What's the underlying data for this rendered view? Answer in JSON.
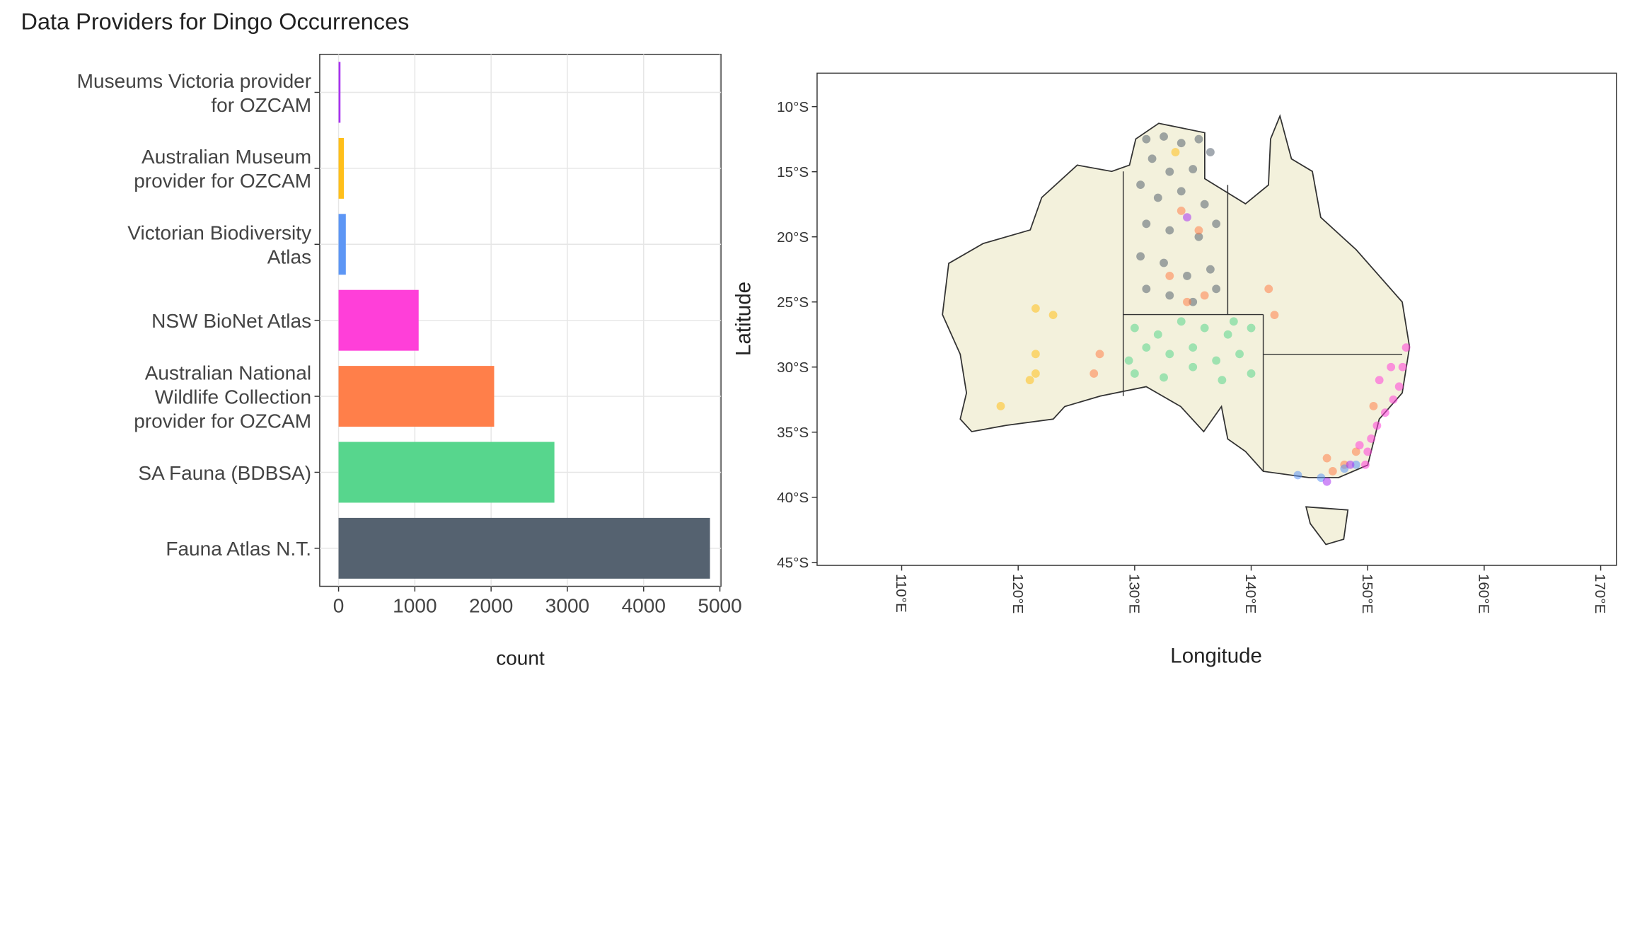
{
  "title": "Data Providers for Dingo Occurrences",
  "chart_data": [
    {
      "type": "barh",
      "categories": [
        "Museums Victoria provider\nfor OZCAM",
        "Australian Museum\nprovider for OZCAM",
        "Victorian Biodiversity\nAtlas",
        "NSW BioNet Atlas",
        "Australian National\nWildlife Collection\nprovider for OZCAM",
        "SA Fauna (BDBSA)",
        "Fauna Atlas N.T."
      ],
      "values": [
        25,
        70,
        95,
        1050,
        2040,
        2830,
        4870
      ],
      "colors": [
        "#a832f0",
        "#ffbf1a",
        "#5d96f5",
        "#ff3fd9",
        "#ff7f4a",
        "#57d68d",
        "#556270"
      ],
      "xlabel": "count",
      "xlim": [
        -247,
        5014
      ],
      "xticks": [
        0,
        1000,
        2000,
        3000,
        4000,
        5000
      ],
      "grid": true
    },
    {
      "type": "scatter",
      "xlabel": "Longitude",
      "ylabel": "Latitude",
      "xlim": [
        102.74,
        171.35
      ],
      "ylim": [
        -45.23,
        -7.43
      ],
      "xticks": [
        {
          "value": 110,
          "label": "110°E"
        },
        {
          "value": 120,
          "label": "120°E"
        },
        {
          "value": 130,
          "label": "130°E"
        },
        {
          "value": 140,
          "label": "140°E"
        },
        {
          "value": 150,
          "label": "150°E"
        },
        {
          "value": 160,
          "label": "160°E"
        },
        {
          "value": 170,
          "label": "170°E"
        }
      ],
      "yticks": [
        {
          "value": -10,
          "label": "10°S"
        },
        {
          "value": -15,
          "label": "15°S"
        },
        {
          "value": -20,
          "label": "20°S"
        },
        {
          "value": -25,
          "label": "25°S"
        },
        {
          "value": -30,
          "label": "30°S"
        },
        {
          "value": -35,
          "label": "35°S"
        },
        {
          "value": -40,
          "label": "40°S"
        },
        {
          "value": -45,
          "label": "45°S"
        }
      ],
      "series": [
        {
          "color": "#556270",
          "x": [
            131,
            132.5,
            134,
            135.5,
            136.5,
            131.5,
            133,
            135,
            130.5,
            132,
            134,
            136,
            131,
            133,
            135.5,
            137,
            130.5,
            132.5,
            134.5,
            136.5,
            131,
            133,
            135,
            137
          ],
          "y": [
            -12.5,
            -12.3,
            -12.8,
            -12.5,
            -13.5,
            -14,
            -15,
            -14.8,
            -16,
            -17,
            -16.5,
            -17.5,
            -19,
            -19.5,
            -20,
            -19,
            -21.5,
            -22,
            -23,
            -22.5,
            -24,
            -24.5,
            -25,
            -24
          ]
        },
        {
          "color": "#57d68d",
          "x": [
            130,
            132,
            134,
            136,
            138,
            140,
            131,
            133,
            135,
            137,
            139,
            130,
            132.5,
            135,
            137.5,
            140,
            129.5,
            138.5
          ],
          "y": [
            -27,
            -27.5,
            -26.5,
            -27,
            -27.5,
            -27,
            -28.5,
            -29,
            -28.5,
            -29.5,
            -29,
            -30.5,
            -30.8,
            -30,
            -31,
            -30.5,
            -29.5,
            -26.5
          ]
        },
        {
          "color": "#ff7f4a",
          "x": [
            134,
            135.5,
            133,
            136,
            134.5,
            127,
            126.5,
            141.5,
            142,
            148,
            146.5,
            149,
            150.5,
            147
          ],
          "y": [
            -18,
            -19.5,
            -23,
            -24.5,
            -25,
            -29,
            -30.5,
            -24,
            -26,
            -37.5,
            -37,
            -36.5,
            -33,
            -38
          ]
        },
        {
          "color": "#ff3fd9",
          "x": [
            153.3,
            153,
            152.7,
            152.2,
            151.5,
            150.8,
            150.3,
            150,
            149.8,
            149.3,
            152,
            151
          ],
          "y": [
            -28.5,
            -30,
            -31.5,
            -32.5,
            -33.5,
            -34.5,
            -35.5,
            -36.5,
            -37.5,
            -36,
            -30,
            -31
          ]
        },
        {
          "color": "#5d96f5",
          "x": [
            146,
            148,
            144,
            149
          ],
          "y": [
            -38.5,
            -37.8,
            -38.3,
            -37.5
          ]
        },
        {
          "color": "#ffbf1a",
          "x": [
            121.5,
            123,
            121.5,
            121.5,
            118.5,
            133.5,
            121
          ],
          "y": [
            -25.5,
            -26,
            -29,
            -30.5,
            -33,
            -13.5,
            -31
          ]
        },
        {
          "color": "#a832f0",
          "x": [
            146.5,
            134.5,
            148.5
          ],
          "y": [
            -38.8,
            -18.5,
            -37.5
          ]
        }
      ]
    }
  ]
}
